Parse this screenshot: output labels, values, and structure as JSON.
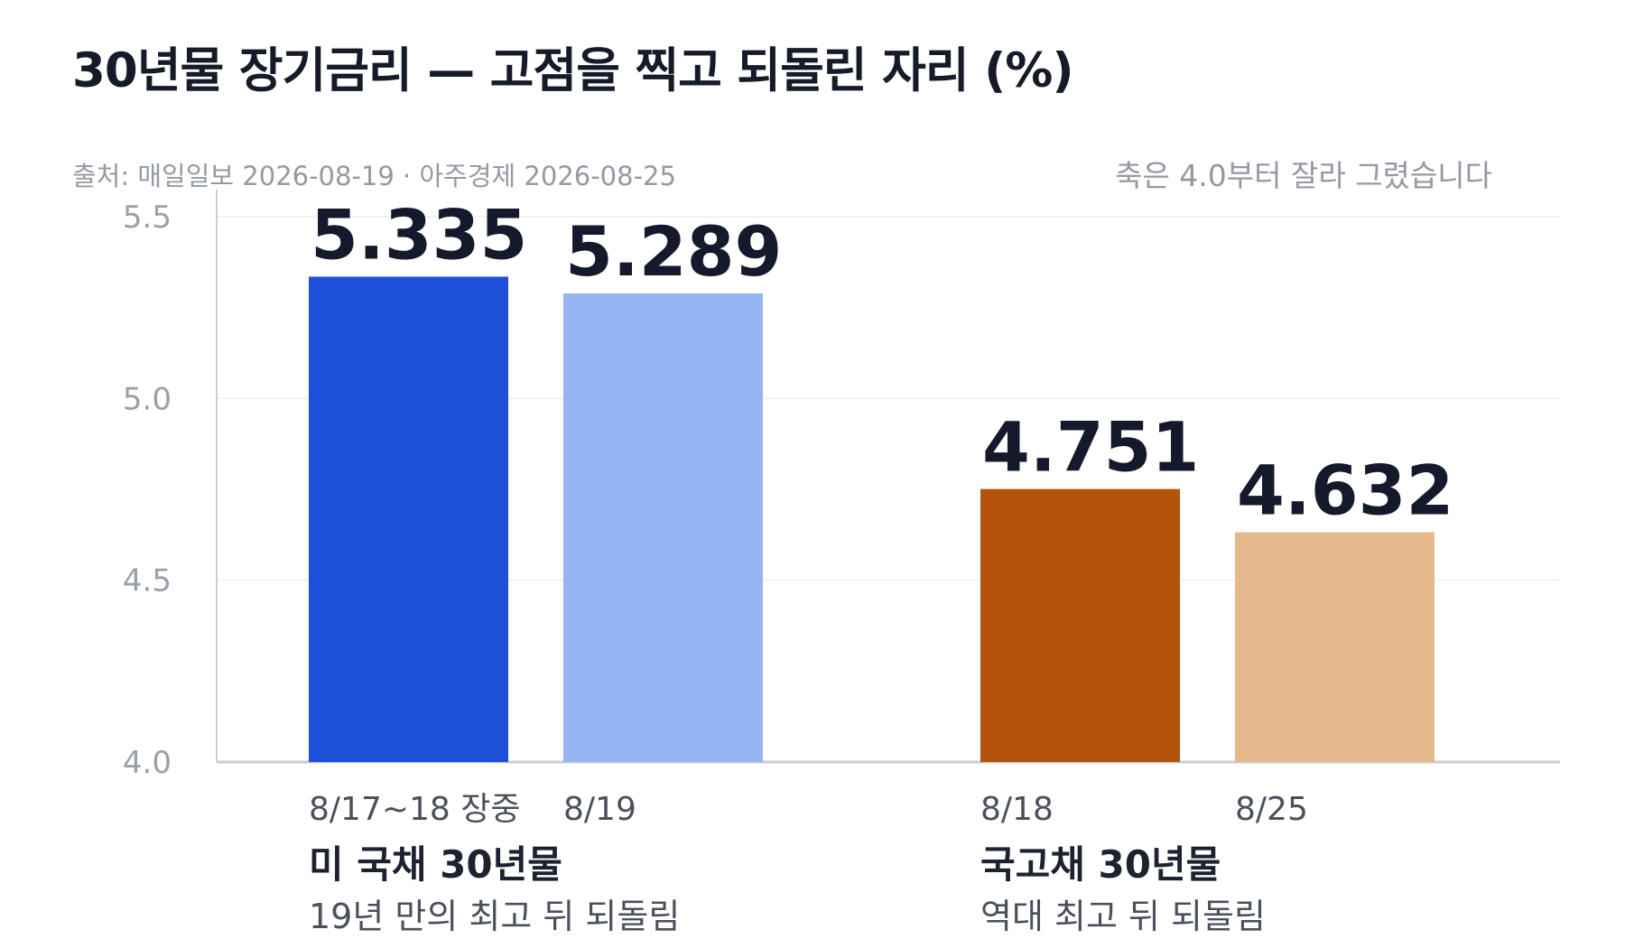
{
  "title": "30년물 장기금리 — 고점을 찍고 되돌린 자리 (%)",
  "source": "출처: 매일일보 2026-08-19 · 아주경제 2026-08-25",
  "axis_note": "축은 4.0부터 잘라 그렸습니다",
  "chart_data": {
    "type": "bar",
    "ylim": [
      4.0,
      5.5
    ],
    "yticks": [
      4.0,
      4.5,
      5.0,
      5.5
    ],
    "ytick_labels": [
      "4.0",
      "4.5",
      "5.0",
      "5.5"
    ],
    "grid": true,
    "groups": [
      {
        "name": "미 국채 30년물",
        "subtitle": "19년 만의 최고 뒤 되돌림",
        "bars": [
          {
            "category": "8/17~18 장중",
            "value": 5.335,
            "label": "5.335",
            "color": "#1e4fd8"
          },
          {
            "category": "8/19",
            "value": 5.289,
            "label": "5.289",
            "color": "#94b4f4"
          }
        ]
      },
      {
        "name": "국고채 30년물",
        "subtitle": "역대 최고 뒤 되돌림",
        "bars": [
          {
            "category": "8/18",
            "value": 4.751,
            "label": "4.751",
            "color": "#b4530b"
          },
          {
            "category": "8/25",
            "value": 4.632,
            "label": "4.632",
            "color": "#e4b88a"
          }
        ]
      }
    ]
  }
}
